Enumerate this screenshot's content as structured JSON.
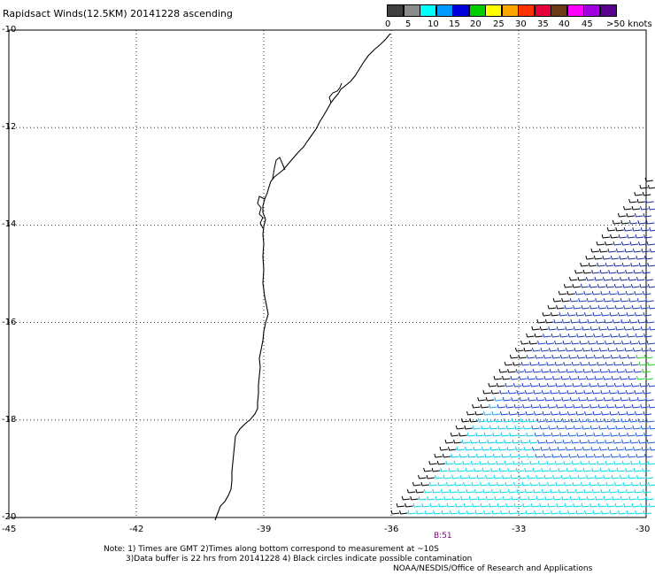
{
  "title": "Rapidsact Winds(12.5KM) 20141228 ascending",
  "colorbar": {
    "labels": [
      "0",
      "5",
      "10",
      "15",
      "20",
      "25",
      "30",
      "35",
      "40",
      "45",
      ">50 knots"
    ],
    "colors": [
      "#404040",
      "#8c8c8c",
      "#00ffff",
      "#0099ff",
      "#0000dd",
      "#00cc00",
      "#ffff00",
      "#ffa500",
      "#ff3300",
      "#e6003c",
      "#6b3a18",
      "#ff00ff",
      "#a000e0",
      "#5a0090"
    ]
  },
  "map": {
    "lat_labels": [
      "-10",
      "-12",
      "-14",
      "-16",
      "-18",
      "-20"
    ],
    "lon_labels": [
      "-45",
      "-42",
      "-39",
      "-36",
      "-33",
      "-30"
    ],
    "lat_range": [
      -20,
      -10
    ],
    "lon_range": [
      -45,
      -30
    ],
    "grid": true
  },
  "time_label": "B:51",
  "notes": {
    "line1": "Note: 1) Times are GMT 2)Times along bottom correspond to measurement at ~10S",
    "line2": "3)Data buffer is 22 hrs from 20141228 4) Black circles indicate possible contamination",
    "line3": "NOAA/NESDIS/Office of Research and Applications"
  }
}
